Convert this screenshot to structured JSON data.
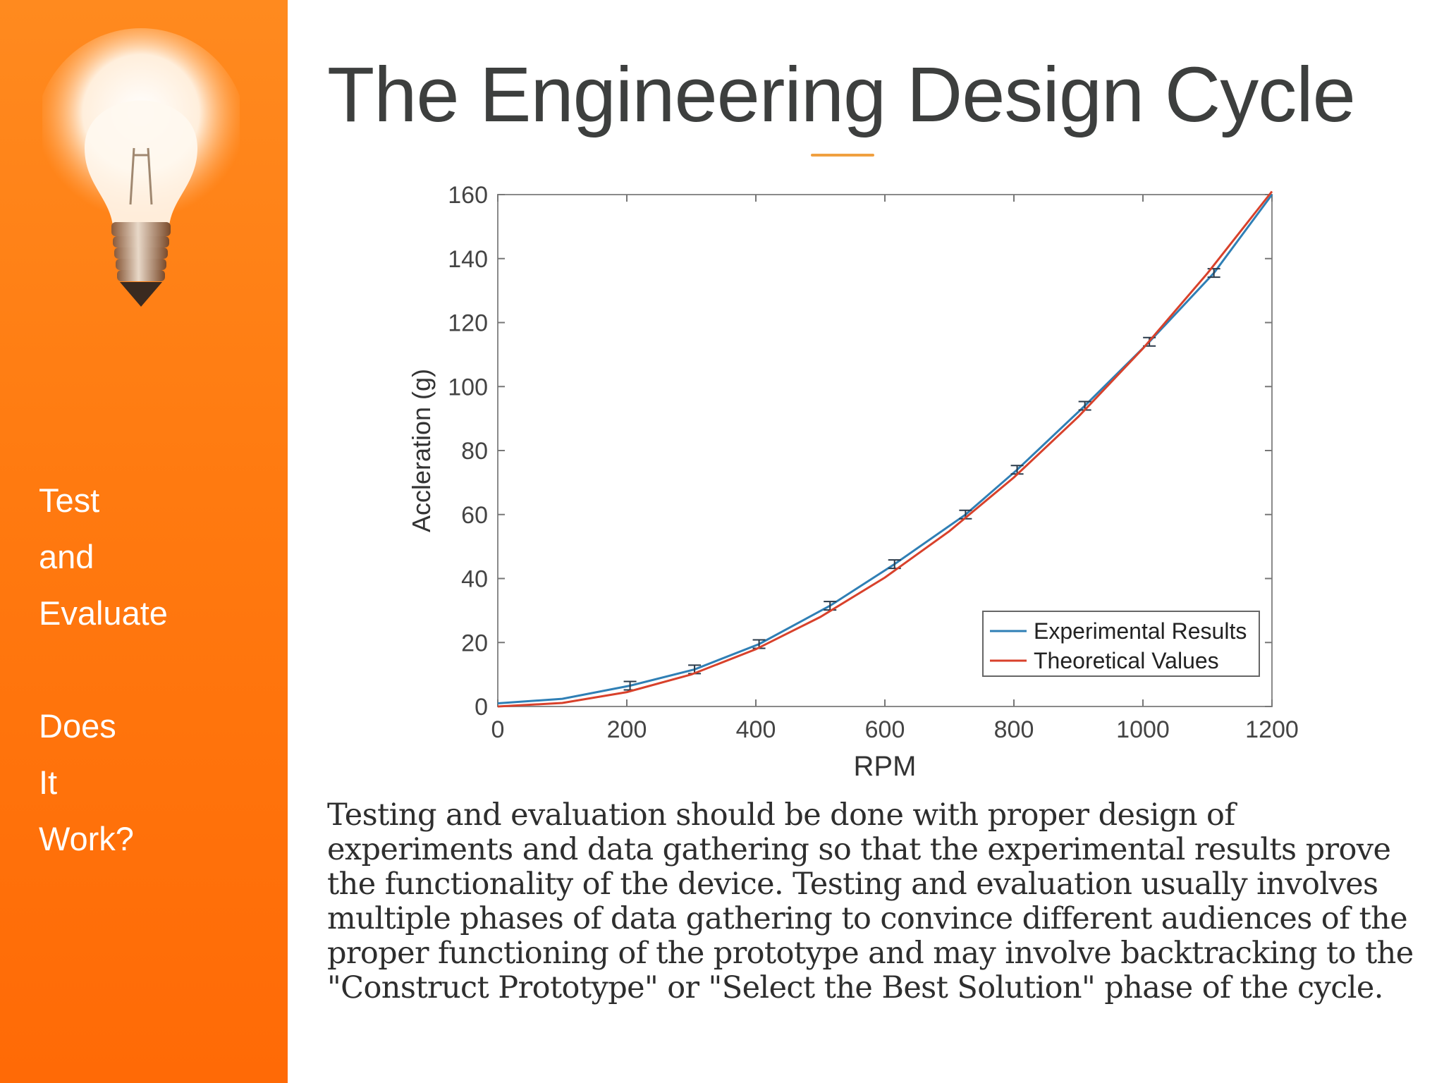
{
  "sidebar": {
    "lines_top": [
      "Test",
      "and",
      "Evaluate"
    ],
    "lines_bottom": [
      "Does",
      "It",
      "Work?"
    ],
    "color": "#ff7a10",
    "icon": "light-bulb-icon"
  },
  "slide": {
    "title": "The Engineering Design Cycle",
    "body": "Testing and evaluation should be done with proper design of experiments and data gathering so that the experimental results prove the functionality of the device.   Testing and evaluation usually involves multiple phases of data gathering to convince different audiences of the proper functioning of the prototype and may involve backtracking to the \"Construct Prototype\" or \"Select the Best Solution\" phase of the cycle."
  },
  "chart_data": {
    "type": "line",
    "title": "",
    "xlabel": "RPM",
    "ylabel": "Accleration (g)",
    "xlim": [
      0,
      1200
    ],
    "ylim": [
      0,
      160
    ],
    "xticks": [
      0,
      200,
      400,
      600,
      800,
      1000,
      1200
    ],
    "yticks": [
      0,
      20,
      40,
      60,
      80,
      100,
      120,
      140,
      160
    ],
    "grid": false,
    "legend_position": "bottom-right",
    "series": [
      {
        "name": "Experimental Results",
        "color": "#2f7fb5",
        "x": [
          0,
          100,
          205,
          305,
          405,
          515,
          615,
          725,
          805,
          910,
          1010,
          1110,
          1200
        ],
        "y": [
          1,
          2.4,
          6.5,
          11.6,
          19.5,
          31.5,
          44.5,
          60,
          74,
          94,
          114,
          135.5,
          160
        ],
        "error_bars": true
      },
      {
        "name": "Theoretical Values",
        "color": "#d8412b",
        "x": [
          0,
          100,
          200,
          300,
          400,
          500,
          600,
          700,
          800,
          900,
          1000,
          1100,
          1200
        ],
        "y": [
          0,
          1.1,
          4.5,
          10,
          17.9,
          28,
          40.3,
          54.8,
          71.6,
          90.6,
          111.9,
          135.4,
          161
        ]
      }
    ]
  }
}
